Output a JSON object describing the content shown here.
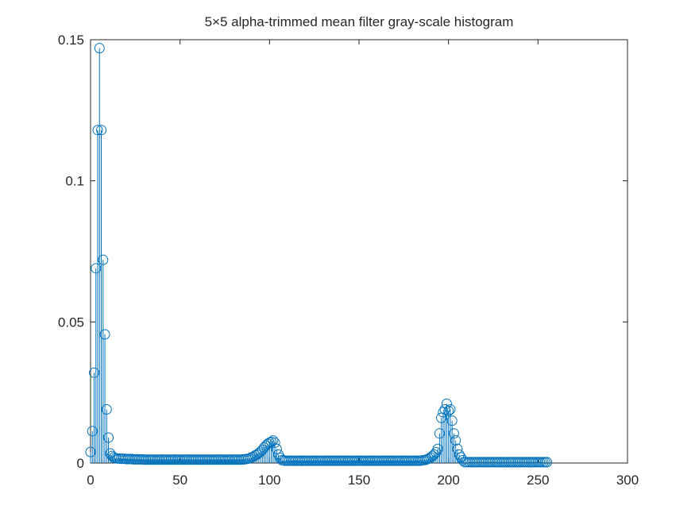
{
  "chart_data": {
    "type": "stem",
    "title": "5×5 alpha-trimmed mean filter gray-scale histogram",
    "color": "#0072bd",
    "xlim": [
      0,
      300
    ],
    "xticks": [
      0,
      50,
      100,
      150,
      200,
      250,
      300
    ],
    "ylim": [
      0,
      0.15
    ],
    "yticks": [
      0,
      0.05,
      0.1,
      0.15
    ],
    "x": [
      0,
      1,
      2,
      3,
      4,
      5,
      6,
      7,
      8,
      9,
      10,
      11,
      12,
      13,
      14,
      15,
      16,
      17,
      18,
      19,
      20,
      21,
      22,
      23,
      24,
      25,
      26,
      27,
      28,
      29,
      30,
      31,
      32,
      33,
      34,
      35,
      36,
      37,
      38,
      39,
      40,
      41,
      42,
      43,
      44,
      45,
      46,
      47,
      48,
      49,
      50,
      51,
      52,
      53,
      54,
      55,
      56,
      57,
      58,
      59,
      60,
      61,
      62,
      63,
      64,
      65,
      66,
      67,
      68,
      69,
      70,
      71,
      72,
      73,
      74,
      75,
      76,
      77,
      78,
      79,
      80,
      81,
      82,
      83,
      84,
      85,
      86,
      87,
      88,
      89,
      90,
      91,
      92,
      93,
      94,
      95,
      96,
      97,
      98,
      99,
      100,
      101,
      102,
      103,
      104,
      105,
      106,
      107,
      108,
      109,
      110,
      111,
      112,
      113,
      114,
      115,
      116,
      117,
      118,
      119,
      120,
      121,
      122,
      123,
      124,
      125,
      126,
      127,
      128,
      129,
      130,
      131,
      132,
      133,
      134,
      135,
      136,
      137,
      138,
      139,
      140,
      141,
      142,
      143,
      144,
      145,
      146,
      147,
      148,
      149,
      150,
      151,
      152,
      153,
      154,
      155,
      156,
      157,
      158,
      159,
      160,
      161,
      162,
      163,
      164,
      165,
      166,
      167,
      168,
      169,
      170,
      171,
      172,
      173,
      174,
      175,
      176,
      177,
      178,
      179,
      180,
      181,
      182,
      183,
      184,
      185,
      186,
      187,
      188,
      189,
      190,
      191,
      192,
      193,
      194,
      195,
      196,
      197,
      198,
      199,
      200,
      201,
      202,
      203,
      204,
      205,
      206,
      207,
      208,
      209,
      210,
      211,
      212,
      213,
      214,
      215,
      216,
      217,
      218,
      219,
      220,
      221,
      222,
      223,
      224,
      225,
      226,
      227,
      228,
      229,
      230,
      231,
      232,
      233,
      234,
      235,
      236,
      237,
      238,
      239,
      240,
      241,
      242,
      243,
      244,
      245,
      246,
      247,
      248,
      249,
      250,
      251,
      252,
      253,
      254,
      255
    ],
    "values": [
      0.0039,
      0.0113,
      0.032,
      0.069,
      0.118,
      0.147,
      0.118,
      0.072,
      0.0456,
      0.019,
      0.009,
      0.0034,
      0.0025,
      0.002,
      0.0017,
      0.0016,
      0.0016,
      0.0015,
      0.0015,
      0.0015,
      0.0014,
      0.0014,
      0.0014,
      0.0014,
      0.0013,
      0.0013,
      0.0013,
      0.0013,
      0.0013,
      0.0013,
      0.0012,
      0.0012,
      0.0012,
      0.0012,
      0.0012,
      0.0012,
      0.0012,
      0.0012,
      0.0012,
      0.0012,
      0.0012,
      0.0012,
      0.0012,
      0.0012,
      0.0012,
      0.0012,
      0.0012,
      0.0012,
      0.0012,
      0.0012,
      0.0012,
      0.0012,
      0.0012,
      0.0012,
      0.0012,
      0.0012,
      0.0012,
      0.0012,
      0.0012,
      0.0012,
      0.0012,
      0.0012,
      0.0012,
      0.0012,
      0.0012,
      0.0012,
      0.0012,
      0.0012,
      0.0012,
      0.0012,
      0.0012,
      0.0012,
      0.0012,
      0.0012,
      0.0012,
      0.0012,
      0.0012,
      0.0012,
      0.0012,
      0.0012,
      0.0012,
      0.0012,
      0.0012,
      0.0012,
      0.0012,
      0.0013,
      0.0013,
      0.0014,
      0.0015,
      0.0017,
      0.002,
      0.0023,
      0.0027,
      0.003,
      0.0035,
      0.004,
      0.0047,
      0.0055,
      0.0062,
      0.0068,
      0.0072,
      0.0075,
      0.008,
      0.0072,
      0.005,
      0.003,
      0.0018,
      0.001,
      0.0009,
      0.0008,
      0.0008,
      0.0008,
      0.0008,
      0.0008,
      0.0008,
      0.0008,
      0.0008,
      0.0008,
      0.0008,
      0.0008,
      0.0008,
      0.0008,
      0.0008,
      0.0008,
      0.0008,
      0.0008,
      0.0008,
      0.0008,
      0.0008,
      0.0008,
      0.0008,
      0.0008,
      0.0008,
      0.0008,
      0.0008,
      0.0008,
      0.0008,
      0.0008,
      0.0008,
      0.0008,
      0.0008,
      0.0008,
      0.0008,
      0.0008,
      0.0008,
      0.0008,
      0.0008,
      0.0008,
      0.0008,
      0.0008,
      0.0008,
      0.0008,
      0.0008,
      0.0008,
      0.0008,
      0.0008,
      0.0008,
      0.0008,
      0.0008,
      0.0008,
      0.0008,
      0.0008,
      0.0008,
      0.0008,
      0.0008,
      0.0008,
      0.0008,
      0.0008,
      0.0008,
      0.0008,
      0.0008,
      0.0008,
      0.0008,
      0.0008,
      0.0008,
      0.0008,
      0.0008,
      0.0008,
      0.0008,
      0.0008,
      0.0008,
      0.0008,
      0.0008,
      0.0008,
      0.0008,
      0.0009,
      0.001,
      0.0011,
      0.0013,
      0.0016,
      0.002,
      0.0025,
      0.003,
      0.0038,
      0.005,
      0.0105,
      0.016,
      0.018,
      0.019,
      0.021,
      0.0185,
      0.019,
      0.015,
      0.0105,
      0.008,
      0.005,
      0.003,
      0.002,
      0.001,
      0.0003,
      0.0003,
      0.0003,
      0.0003,
      0.0003,
      0.0003,
      0.0003,
      0.0003,
      0.0003,
      0.0003,
      0.0003,
      0.0003,
      0.0003,
      0.0003,
      0.0003,
      0.0003,
      0.0003,
      0.0003,
      0.0003,
      0.0003,
      0.0003,
      0.0003,
      0.0003,
      0.0003,
      0.0003,
      0.0003,
      0.0003,
      0.0003,
      0.0003,
      0.0003,
      0.0003,
      0.0003,
      0.0003,
      0.0003,
      0.0003,
      0.0003,
      0.0003,
      0.0003,
      0.0003,
      0.0003,
      0.0003,
      0.0003,
      0.0003,
      0.0003,
      0.0003,
      0.0003,
      0.0003
    ]
  }
}
